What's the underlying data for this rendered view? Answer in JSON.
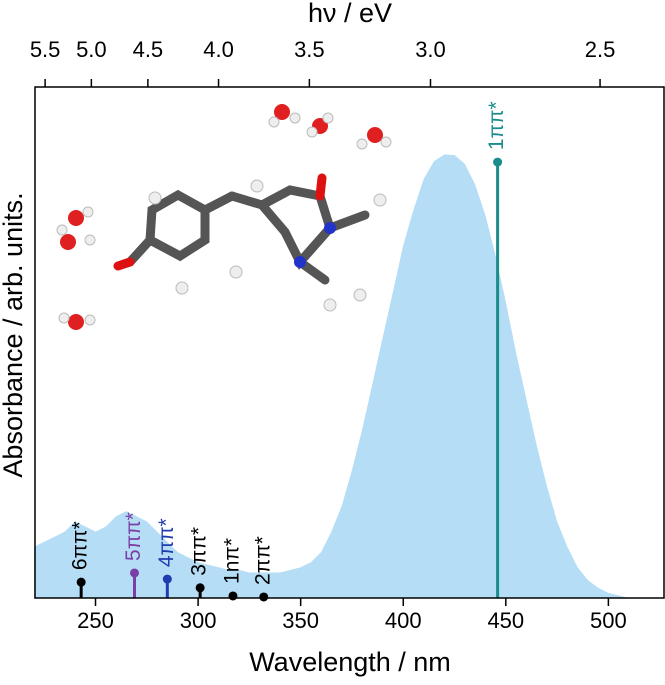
{
  "chart_data": {
    "type": "area",
    "xlabel": "Wavelength / nm",
    "x2label": "hν / eV",
    "ylabel": "Absorbance / arb. units.",
    "color": "#b5def6",
    "x": [
      220,
      225,
      230,
      235,
      240,
      245,
      250,
      255,
      260,
      265,
      270,
      275,
      280,
      285,
      290,
      295,
      300,
      305,
      310,
      315,
      320,
      325,
      330,
      335,
      340,
      345,
      350,
      355,
      360,
      365,
      370,
      375,
      380,
      385,
      390,
      395,
      400,
      405,
      410,
      415,
      420,
      425,
      430,
      435,
      440,
      445,
      450,
      455,
      460,
      465,
      470,
      475,
      480,
      485,
      490,
      495,
      500,
      505,
      510,
      515,
      520
    ],
    "values": [
      0.1,
      0.11,
      0.12,
      0.13,
      0.15,
      0.14,
      0.13,
      0.14,
      0.16,
      0.17,
      0.16,
      0.15,
      0.13,
      0.11,
      0.09,
      0.08,
      0.07,
      0.065,
      0.06,
      0.055,
      0.055,
      0.05,
      0.05,
      0.05,
      0.05,
      0.055,
      0.06,
      0.07,
      0.09,
      0.13,
      0.18,
      0.25,
      0.33,
      0.42,
      0.51,
      0.6,
      0.69,
      0.76,
      0.82,
      0.855,
      0.868,
      0.867,
      0.85,
      0.81,
      0.75,
      0.67,
      0.58,
      0.48,
      0.39,
      0.3,
      0.22,
      0.15,
      0.1,
      0.06,
      0.035,
      0.02,
      0.01,
      0.005,
      0,
      0,
      0
    ],
    "xlim": [
      220.5,
      527.6
    ],
    "xticks": [
      250,
      300,
      350,
      400,
      450,
      500
    ],
    "x2lim": [
      5.623,
      2.35
    ],
    "x2scale": "reciprocal",
    "x2ticks": [
      5.5,
      {
        "value": 5,
        "label": "5.0"
      },
      4.5,
      {
        "value": 4,
        "label": "4.0"
      },
      3.5,
      {
        "value": 3,
        "label": "3.0"
      },
      2.5
    ],
    "ylim": [
      0,
      1
    ],
    "sticks": {
      "labels": [
        "6ππ*",
        "5ππ*",
        "4ππ*",
        "3ππ*",
        "1nπ*",
        "2ππ*",
        "1ππ*"
      ],
      "x": [
        243,
        269,
        285,
        301,
        317,
        332,
        446
      ],
      "values": [
        0.031,
        0.049,
        0.037,
        0.02,
        0.004,
        0.002,
        0.853
      ],
      "colors": [
        "#000000",
        "#7a3fa6",
        "#1f3db0",
        "#000000",
        "#000000",
        "#000000",
        "#1b8c8c"
      ]
    }
  }
}
